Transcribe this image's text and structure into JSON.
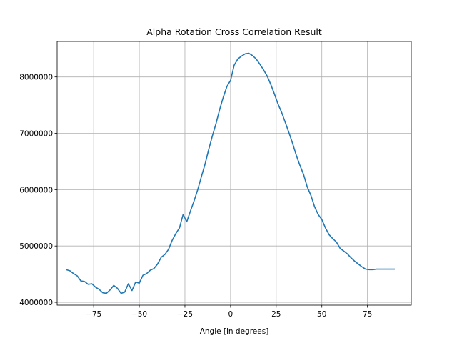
{
  "chart_data": {
    "type": "line",
    "title": "Alpha Rotation Cross Correlation Result",
    "xlabel": "Angle [in degrees]",
    "ylabel": "",
    "xlim": [
      -95,
      99
    ],
    "ylim": [
      3950000,
      8630000
    ],
    "xticks": [
      -75,
      -50,
      -25,
      0,
      25,
      50,
      75
    ],
    "xtick_labels": [
      "−75",
      "−50",
      "−25",
      "0",
      "25",
      "50",
      "75"
    ],
    "yticks": [
      4000000,
      5000000,
      6000000,
      7000000,
      8000000
    ],
    "ytick_labels": [
      "4000000",
      "5000000",
      "6000000",
      "7000000",
      "8000000"
    ],
    "grid": true,
    "line_color": "#1f77b4",
    "series": [
      {
        "x": [
          -90,
          -88,
          -86,
          -84,
          -82,
          -80,
          -78,
          -76,
          -74,
          -72,
          -70,
          -68,
          -66,
          -64,
          -62,
          -60,
          -58,
          -56,
          -54,
          -52,
          -50,
          -48,
          -46,
          -44,
          -42,
          -40,
          -38,
          -36,
          -34,
          -32,
          -30,
          -28,
          -26,
          -24,
          -22,
          -20,
          -18,
          -16,
          -14,
          -12,
          -10,
          -8,
          -6,
          -4,
          -2,
          0,
          2,
          4,
          6,
          8,
          10,
          12,
          14,
          16,
          18,
          20,
          22,
          24,
          26,
          28,
          30,
          32,
          34,
          36,
          38,
          40,
          42,
          44,
          46,
          48,
          50,
          52,
          54,
          56,
          58,
          60,
          62,
          64,
          66,
          68,
          70,
          72,
          74,
          76,
          78,
          80,
          82,
          84,
          86,
          88,
          90
        ],
        "y": [
          4580000,
          4560000,
          4510000,
          4470000,
          4380000,
          4370000,
          4320000,
          4330000,
          4270000,
          4230000,
          4170000,
          4160000,
          4220000,
          4300000,
          4250000,
          4160000,
          4180000,
          4330000,
          4210000,
          4360000,
          4340000,
          4480000,
          4510000,
          4570000,
          4600000,
          4680000,
          4800000,
          4850000,
          4940000,
          5100000,
          5220000,
          5320000,
          5560000,
          5430000,
          5620000,
          5800000,
          6000000,
          6230000,
          6450000,
          6710000,
          6950000,
          7170000,
          7420000,
          7640000,
          7830000,
          7940000,
          8210000,
          8320000,
          8370000,
          8410000,
          8420000,
          8380000,
          8320000,
          8230000,
          8130000,
          8020000,
          7870000,
          7700000,
          7520000,
          7370000,
          7190000,
          7010000,
          6820000,
          6610000,
          6430000,
          6270000,
          6050000,
          5900000,
          5700000,
          5560000,
          5470000,
          5320000,
          5200000,
          5130000,
          5070000,
          4960000,
          4910000,
          4860000,
          4790000,
          4730000,
          4680000,
          4630000,
          4590000,
          4580000,
          4580000,
          4590000,
          4590000,
          4590000,
          4590000,
          4590000,
          4590000
        ]
      }
    ]
  }
}
